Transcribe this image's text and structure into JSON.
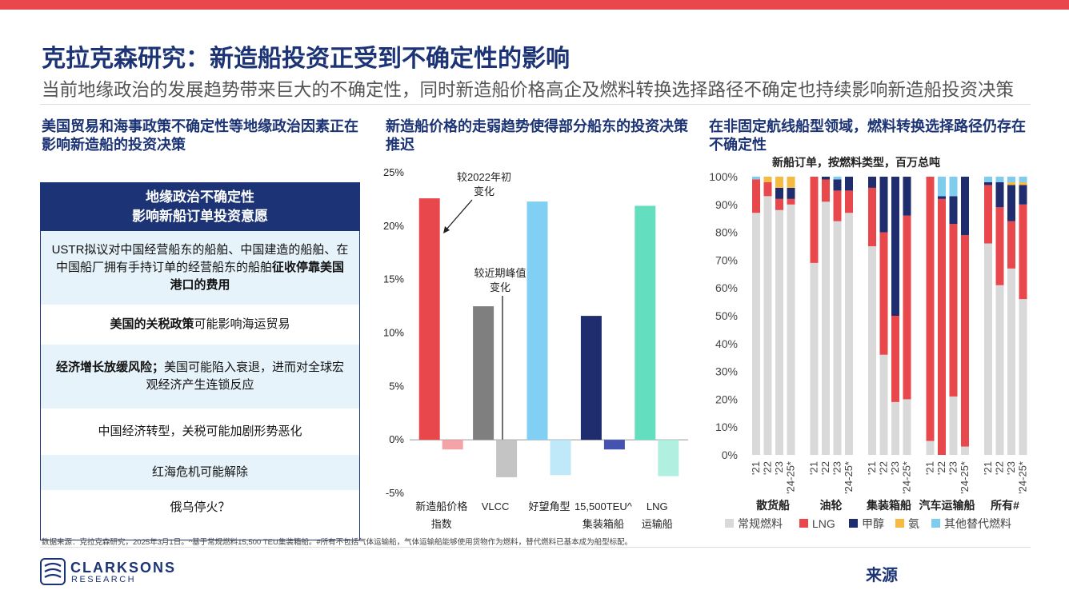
{
  "header": {
    "title": "克拉克森研究：新造船投资正受到不确定性的影响",
    "subtitle": "当前地缘政治的发展趋势带来巨大的不确定性，同时新造船价格高企及燃料转换选择路径不确定也持续影响新造船投资决策"
  },
  "columns": [
    {
      "heading": "美国贸易和海事政策不确定性等地缘政治因素正在影响新造船的投资决策"
    },
    {
      "heading": "新造船价格的走弱趋势使得部分船东的投资决策推迟"
    },
    {
      "heading": "在非固定航线船型领域，燃料转换选择路径仍存在不确定性"
    }
  ],
  "panel": {
    "title": [
      "地缘政治不确定性",
      "影响新船订单投资意愿"
    ],
    "rows": [
      [
        {
          "text": "USTR拟议对中国经营船东的船舶、中国建造的船舶、在中国船厂拥有手持订单的经营船东的船舶",
          "bold": false
        },
        {
          "text": "征收停靠美国港口的费用",
          "bold": true
        }
      ],
      [
        {
          "text": "美国的关税政策",
          "bold": true
        },
        {
          "text": "可能影响海运贸易",
          "bold": false
        }
      ],
      [
        {
          "text": "经济增长放缓风险；",
          "bold": true
        },
        {
          "text": "美国可能陷入衰退，进而对全球宏观经济产生连锁反应",
          "bold": false
        }
      ],
      [
        {
          "text": "中国经济转型，关税可能加剧形势恶化",
          "bold": false
        }
      ],
      [
        {
          "text": "红海危机可能解除",
          "bold": false
        }
      ],
      [
        {
          "text": "俄乌停火？",
          "bold": false
        }
      ]
    ]
  },
  "chart_data": [
    {
      "type": "bar",
      "categories": [
        [
          "新造船价格",
          "指数"
        ],
        [
          "VLCC"
        ],
        [
          "好望角型"
        ],
        [
          "15,500TEU^",
          "集装箱船"
        ],
        [
          "LNG",
          "运输船"
        ]
      ],
      "series": [
        {
          "name": [
            "较2022年初",
            "变化"
          ],
          "colors": [
            "#e8474c",
            "#7f7f7f",
            "#7fd0f2",
            "#1f2d6e",
            "#63dfc0"
          ],
          "values": [
            22.6,
            12.5,
            22.3,
            11.6,
            21.9
          ]
        },
        {
          "name": [
            "较近期峰值",
            "变化"
          ],
          "colors": [
            "#f4a3a6",
            "#c4c4c4",
            "#bfe8f8",
            "#4453b0",
            "#b1efe0"
          ],
          "values": [
            -0.9,
            -3.5,
            -3.3,
            -0.9,
            -3.4
          ]
        }
      ],
      "ylim": [
        -5,
        25
      ],
      "yticks": [
        {
          "value": -5,
          "label": "-5%"
        },
        {
          "value": 0,
          "label": "0%"
        },
        {
          "value": 5,
          "label": "5%"
        },
        {
          "value": 10,
          "label": "10%"
        },
        {
          "value": 15,
          "label": "15%"
        },
        {
          "value": 20,
          "label": "20%"
        },
        {
          "value": 25,
          "label": "25%"
        }
      ],
      "grid": false
    },
    {
      "type": "stacked_bar",
      "subtitle": "新船订单，按燃料类型，百万总吨",
      "groups": [
        "散货船",
        "油轮",
        "集装箱船",
        "汽车运输船",
        "所有#"
      ],
      "categories": [
        "'21",
        "'22",
        "'23",
        "'24-25*",
        "'21",
        "'22",
        "'23",
        "'24-25*",
        "'21",
        "'22",
        "'23",
        "'24-25*",
        "'21",
        "'22",
        "'23",
        "'24-25*",
        "'21",
        "'22",
        "'23",
        "'24-25*"
      ],
      "series": [
        {
          "name": "常规燃料",
          "color": "#d9d9d9",
          "values": [
            87,
            93,
            88,
            90,
            69,
            91,
            84,
            87,
            75,
            36,
            19,
            20,
            5,
            0,
            21,
            3,
            76,
            61,
            67,
            56
          ]
        },
        {
          "name": "LNG",
          "color": "#e8474c",
          "values": [
            12,
            5,
            4,
            2,
            31,
            8,
            11,
            8,
            21,
            44,
            31,
            66,
            95,
            92,
            62,
            76,
            21,
            28,
            17,
            34
          ]
        },
        {
          "name": "甲醇",
          "color": "#1f2d6e",
          "values": [
            0,
            0,
            4,
            4,
            0,
            1,
            4,
            5,
            4,
            20,
            50,
            14,
            0,
            1,
            10,
            21,
            1,
            9,
            13,
            7
          ]
        },
        {
          "name": "氨",
          "color": "#f6b941",
          "values": [
            0,
            2,
            4,
            4,
            0,
            0,
            0,
            0,
            0,
            0,
            0,
            0,
            0,
            0,
            0,
            0,
            0,
            0,
            1,
            1
          ]
        },
        {
          "name": "其他替代燃料",
          "color": "#7fcdee",
          "values": [
            1,
            0,
            0,
            0,
            0,
            0,
            1,
            0,
            0,
            0,
            0,
            0,
            0,
            7,
            7,
            0,
            2,
            2,
            2,
            2
          ]
        }
      ],
      "ylim": [
        0,
        100
      ],
      "yticks": [
        {
          "value": 0,
          "label": "0%"
        },
        {
          "value": 10,
          "label": "10%"
        },
        {
          "value": 20,
          "label": "20%"
        },
        {
          "value": 30,
          "label": "30%"
        },
        {
          "value": 40,
          "label": "40%"
        },
        {
          "value": 50,
          "label": "50%"
        },
        {
          "value": 60,
          "label": "60%"
        },
        {
          "value": 70,
          "label": "70%"
        },
        {
          "value": 80,
          "label": "80%"
        },
        {
          "value": 90,
          "label": "90%"
        },
        {
          "value": 100,
          "label": "100%"
        }
      ],
      "grid": false
    }
  ],
  "footnote": "数据来源：克拉克森研究，2025年3月1日。^基于常规燃料15,500 TEU集装箱船。#所有不包括气体运输船，气体运输船能够使用货物作为燃料，替代燃料已基本成为船型标配。",
  "logo": {
    "name": "CLARKSONS",
    "sub": "RESEARCH"
  },
  "source": "来源"
}
